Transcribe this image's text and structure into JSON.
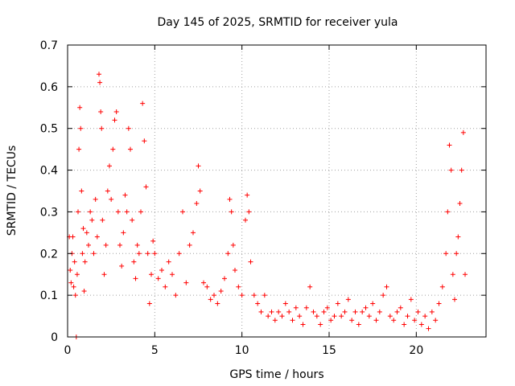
{
  "chart_data": {
    "type": "scatter",
    "title": "Day 145 of 2025, SRMTID for receiver yula",
    "xlabel": "GPS time / hours",
    "ylabel": "SRMTID / TECUs",
    "xlim": [
      0,
      24
    ],
    "ylim": [
      0,
      0.7
    ],
    "x_ticks": [
      0,
      5,
      10,
      15,
      20
    ],
    "x_tick_labels": [
      "0",
      "5",
      "10",
      "15",
      "20"
    ],
    "y_ticks": [
      0,
      0.1,
      0.2,
      0.3,
      0.4,
      0.5,
      0.6,
      0.7
    ],
    "y_tick_labels": [
      "0",
      "0.1",
      "0.2",
      "0.3",
      "0.4",
      "0.5",
      "0.6",
      "0.7"
    ],
    "grid": true,
    "marker": "+",
    "color": "#ff0000",
    "series": [
      {
        "name": "SRMTID",
        "points": [
          [
            0.1,
            0.24
          ],
          [
            0.15,
            0.16
          ],
          [
            0.2,
            0.13
          ],
          [
            0.25,
            0.2
          ],
          [
            0.3,
            0.24
          ],
          [
            0.35,
            0.12
          ],
          [
            0.4,
            0.18
          ],
          [
            0.45,
            0.1
          ],
          [
            0.5,
            0.0
          ],
          [
            0.55,
            0.15
          ],
          [
            0.6,
            0.3
          ],
          [
            0.65,
            0.45
          ],
          [
            0.7,
            0.55
          ],
          [
            0.75,
            0.5
          ],
          [
            0.8,
            0.35
          ],
          [
            0.85,
            0.2
          ],
          [
            0.9,
            0.26
          ],
          [
            0.95,
            0.11
          ],
          [
            1.0,
            0.18
          ],
          [
            1.1,
            0.25
          ],
          [
            1.2,
            0.22
          ],
          [
            1.3,
            0.3
          ],
          [
            1.4,
            0.28
          ],
          [
            1.5,
            0.2
          ],
          [
            1.6,
            0.33
          ],
          [
            1.7,
            0.24
          ],
          [
            1.8,
            0.63
          ],
          [
            1.85,
            0.61
          ],
          [
            1.9,
            0.54
          ],
          [
            1.95,
            0.5
          ],
          [
            2.0,
            0.28
          ],
          [
            2.1,
            0.15
          ],
          [
            2.2,
            0.22
          ],
          [
            2.3,
            0.35
          ],
          [
            2.4,
            0.41
          ],
          [
            2.5,
            0.33
          ],
          [
            2.6,
            0.45
          ],
          [
            2.7,
            0.52
          ],
          [
            2.8,
            0.54
          ],
          [
            2.9,
            0.3
          ],
          [
            3.0,
            0.22
          ],
          [
            3.1,
            0.17
          ],
          [
            3.2,
            0.25
          ],
          [
            3.3,
            0.34
          ],
          [
            3.4,
            0.3
          ],
          [
            3.5,
            0.5
          ],
          [
            3.6,
            0.45
          ],
          [
            3.7,
            0.28
          ],
          [
            3.8,
            0.18
          ],
          [
            3.9,
            0.14
          ],
          [
            4.0,
            0.22
          ],
          [
            4.1,
            0.2
          ],
          [
            4.2,
            0.3
          ],
          [
            4.3,
            0.56
          ],
          [
            4.4,
            0.47
          ],
          [
            4.5,
            0.36
          ],
          [
            4.6,
            0.2
          ],
          [
            4.7,
            0.08
          ],
          [
            4.8,
            0.15
          ],
          [
            4.9,
            0.23
          ],
          [
            5.0,
            0.2
          ],
          [
            5.2,
            0.14
          ],
          [
            5.4,
            0.16
          ],
          [
            5.6,
            0.12
          ],
          [
            5.8,
            0.18
          ],
          [
            6.0,
            0.15
          ],
          [
            6.2,
            0.1
          ],
          [
            6.4,
            0.2
          ],
          [
            6.6,
            0.3
          ],
          [
            6.8,
            0.13
          ],
          [
            7.0,
            0.22
          ],
          [
            7.2,
            0.25
          ],
          [
            7.4,
            0.32
          ],
          [
            7.5,
            0.41
          ],
          [
            7.6,
            0.35
          ],
          [
            7.8,
            0.13
          ],
          [
            8.0,
            0.12
          ],
          [
            8.2,
            0.09
          ],
          [
            8.4,
            0.1
          ],
          [
            8.6,
            0.08
          ],
          [
            8.8,
            0.11
          ],
          [
            9.0,
            0.14
          ],
          [
            9.2,
            0.2
          ],
          [
            9.3,
            0.33
          ],
          [
            9.4,
            0.3
          ],
          [
            9.5,
            0.22
          ],
          [
            9.6,
            0.16
          ],
          [
            9.8,
            0.12
          ],
          [
            10.0,
            0.1
          ],
          [
            10.2,
            0.28
          ],
          [
            10.3,
            0.34
          ],
          [
            10.4,
            0.3
          ],
          [
            10.5,
            0.18
          ],
          [
            10.7,
            0.1
          ],
          [
            10.9,
            0.08
          ],
          [
            11.1,
            0.06
          ],
          [
            11.3,
            0.1
          ],
          [
            11.5,
            0.05
          ],
          [
            11.7,
            0.06
          ],
          [
            11.9,
            0.04
          ],
          [
            12.1,
            0.06
          ],
          [
            12.3,
            0.05
          ],
          [
            12.5,
            0.08
          ],
          [
            12.7,
            0.06
          ],
          [
            12.9,
            0.04
          ],
          [
            13.1,
            0.07
          ],
          [
            13.3,
            0.05
          ],
          [
            13.5,
            0.03
          ],
          [
            13.7,
            0.07
          ],
          [
            13.9,
            0.12
          ],
          [
            14.1,
            0.06
          ],
          [
            14.3,
            0.05
          ],
          [
            14.5,
            0.03
          ],
          [
            14.7,
            0.06
          ],
          [
            14.9,
            0.07
          ],
          [
            15.1,
            0.04
          ],
          [
            15.3,
            0.05
          ],
          [
            15.5,
            0.08
          ],
          [
            15.7,
            0.05
          ],
          [
            15.9,
            0.06
          ],
          [
            16.1,
            0.09
          ],
          [
            16.3,
            0.04
          ],
          [
            16.5,
            0.06
          ],
          [
            16.7,
            0.03
          ],
          [
            16.9,
            0.06
          ],
          [
            17.1,
            0.07
          ],
          [
            17.3,
            0.05
          ],
          [
            17.5,
            0.08
          ],
          [
            17.7,
            0.04
          ],
          [
            17.9,
            0.06
          ],
          [
            18.1,
            0.1
          ],
          [
            18.3,
            0.12
          ],
          [
            18.5,
            0.05
          ],
          [
            18.7,
            0.04
          ],
          [
            18.9,
            0.06
          ],
          [
            19.1,
            0.07
          ],
          [
            19.3,
            0.03
          ],
          [
            19.5,
            0.05
          ],
          [
            19.7,
            0.09
          ],
          [
            19.9,
            0.04
          ],
          [
            20.1,
            0.06
          ],
          [
            20.3,
            0.03
          ],
          [
            20.5,
            0.05
          ],
          [
            20.7,
            0.02
          ],
          [
            20.9,
            0.06
          ],
          [
            21.1,
            0.04
          ],
          [
            21.3,
            0.08
          ],
          [
            21.5,
            0.12
          ],
          [
            21.7,
            0.2
          ],
          [
            21.8,
            0.3
          ],
          [
            21.9,
            0.46
          ],
          [
            22.0,
            0.4
          ],
          [
            22.1,
            0.15
          ],
          [
            22.2,
            0.09
          ],
          [
            22.3,
            0.2
          ],
          [
            22.4,
            0.24
          ],
          [
            22.5,
            0.32
          ],
          [
            22.6,
            0.4
          ],
          [
            22.7,
            0.49
          ],
          [
            22.8,
            0.15
          ]
        ]
      }
    ]
  }
}
